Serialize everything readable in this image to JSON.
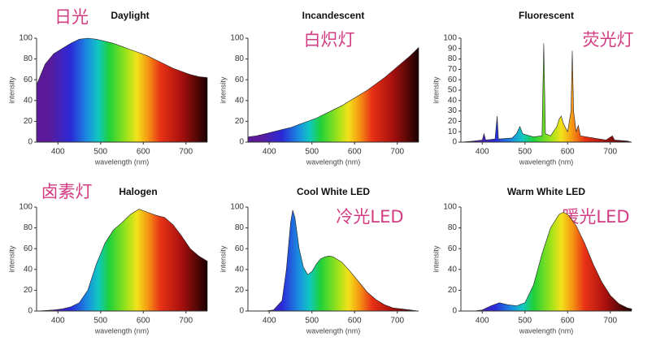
{
  "chart_data": [
    {
      "type": "area",
      "title": "Daylight",
      "annotation": "日光",
      "xlabel": "wavelength (nm)",
      "ylabel": "intensity",
      "x": [
        350,
        370,
        390,
        410,
        430,
        450,
        470,
        490,
        510,
        530,
        550,
        570,
        590,
        610,
        630,
        650,
        670,
        690,
        710,
        730,
        750
      ],
      "values": [
        55,
        75,
        85,
        90,
        95,
        99,
        100,
        99,
        97,
        95,
        92,
        89,
        86,
        83,
        79,
        75,
        71,
        68,
        65,
        63,
        62
      ],
      "xlim": [
        350,
        750
      ],
      "ylim": [
        0,
        100
      ],
      "xticks": [
        400,
        500,
        600,
        700
      ],
      "yticks": [
        0,
        20,
        40,
        60,
        80,
        100
      ]
    },
    {
      "type": "area",
      "title": "Incandescent",
      "annotation": "白炽灯",
      "xlabel": "wavelength (nm)",
      "ylabel": "intensity",
      "x": [
        350,
        370,
        390,
        410,
        430,
        450,
        470,
        490,
        510,
        530,
        550,
        570,
        590,
        610,
        630,
        650,
        670,
        690,
        710,
        730,
        750
      ],
      "values": [
        5,
        6,
        8,
        10,
        12,
        14,
        17,
        20,
        23,
        27,
        31,
        35,
        40,
        45,
        50,
        56,
        62,
        69,
        76,
        83,
        91
      ],
      "xlim": [
        350,
        750
      ],
      "ylim": [
        0,
        100
      ],
      "xticks": [
        400,
        500,
        600,
        700
      ],
      "yticks": [
        0,
        20,
        40,
        60,
        80,
        100
      ]
    },
    {
      "type": "area",
      "title": "Fluorescent",
      "annotation": "荧光灯",
      "xlabel": "wavelength (nm)",
      "ylabel": "intensity",
      "x": [
        350,
        380,
        400,
        404,
        408,
        430,
        435,
        438,
        470,
        480,
        488,
        495,
        520,
        540,
        544,
        548,
        560,
        575,
        580,
        585,
        590,
        600,
        608,
        611,
        614,
        620,
        625,
        630,
        660,
        690,
        705,
        710,
        740,
        750
      ],
      "values": [
        0,
        1,
        2,
        8,
        2,
        3,
        25,
        3,
        4,
        8,
        15,
        8,
        5,
        6,
        95,
        8,
        6,
        15,
        22,
        25,
        18,
        10,
        30,
        88,
        30,
        10,
        16,
        6,
        4,
        2,
        6,
        2,
        1,
        0
      ],
      "xlim": [
        350,
        750
      ],
      "ylim": [
        0,
        100
      ],
      "xticks": [
        400,
        500,
        600,
        700
      ],
      "yticks": [
        0,
        10,
        20,
        30,
        40,
        50,
        60,
        70,
        80,
        90,
        100
      ]
    },
    {
      "type": "area",
      "title": "Halogen",
      "annotation": "卤素灯",
      "xlabel": "wavelength (nm)",
      "ylabel": "intensity",
      "x": [
        350,
        370,
        390,
        410,
        430,
        450,
        470,
        490,
        510,
        530,
        550,
        570,
        590,
        610,
        630,
        650,
        670,
        690,
        710,
        730,
        750
      ],
      "values": [
        0,
        0.5,
        1,
        2,
        4,
        8,
        20,
        45,
        65,
        78,
        85,
        93,
        98,
        95,
        92,
        90,
        83,
        72,
        60,
        53,
        48
      ],
      "xlim": [
        350,
        750
      ],
      "ylim": [
        0,
        100
      ],
      "xticks": [
        400,
        500,
        600,
        700
      ],
      "yticks": [
        0,
        20,
        40,
        60,
        80,
        100
      ]
    },
    {
      "type": "area",
      "title": "Cool White LED",
      "annotation": "冷光LED",
      "xlabel": "wavelength (nm)",
      "ylabel": "intensity",
      "x": [
        350,
        370,
        390,
        410,
        430,
        440,
        450,
        455,
        460,
        470,
        480,
        490,
        500,
        510,
        520,
        530,
        540,
        550,
        570,
        590,
        610,
        630,
        650,
        670,
        690,
        710,
        730,
        750
      ],
      "values": [
        0,
        0,
        0,
        1,
        10,
        40,
        85,
        97,
        90,
        60,
        42,
        35,
        38,
        45,
        50,
        52,
        53,
        52,
        47,
        38,
        28,
        18,
        11,
        6,
        3,
        2,
        1,
        0
      ],
      "xlim": [
        350,
        750
      ],
      "ylim": [
        0,
        100
      ],
      "xticks": [
        400,
        500,
        600,
        700
      ],
      "yticks": [
        0,
        20,
        40,
        60,
        80,
        100
      ]
    },
    {
      "type": "area",
      "title": "Warm White LED",
      "annotation": "暖光LED",
      "xlabel": "wavelength (nm)",
      "ylabel": "intensity",
      "x": [
        350,
        380,
        400,
        420,
        440,
        460,
        480,
        500,
        520,
        540,
        560,
        580,
        590,
        600,
        620,
        640,
        660,
        680,
        700,
        720,
        740,
        750
      ],
      "values": [
        0,
        0,
        1,
        5,
        8,
        6,
        5,
        8,
        25,
        55,
        80,
        93,
        95,
        93,
        82,
        65,
        45,
        28,
        15,
        7,
        3,
        2
      ],
      "xlim": [
        350,
        750
      ],
      "ylim": [
        0,
        100
      ],
      "xticks": [
        400,
        500,
        600,
        700
      ],
      "yticks": [
        0,
        20,
        40,
        60,
        80,
        100
      ]
    }
  ]
}
